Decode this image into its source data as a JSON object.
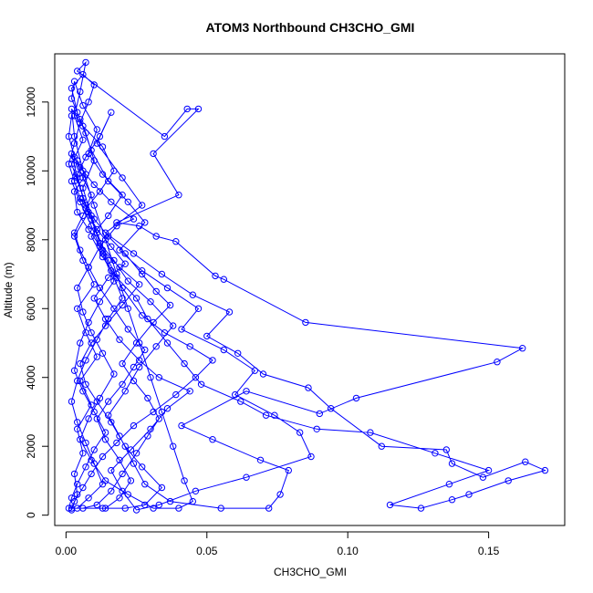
{
  "chart_data": {
    "type": "line",
    "title": "ATOM3 Northbound CH3CHO_GMI",
    "xlabel": "CH3CHO_GMI",
    "ylabel": "Altitude (m)",
    "xlim": [
      -0.004,
      0.177
    ],
    "ylim": [
      -300,
      13400
    ],
    "xticks": [
      0.0,
      0.05,
      0.1,
      0.15
    ],
    "xtick_labels": [
      "0.00",
      "0.05",
      "0.10",
      "0.15"
    ],
    "yticks": [
      0,
      2000,
      4000,
      6000,
      8000,
      10000,
      12000
    ],
    "ytick_labels": [
      "0",
      "2000",
      "4000",
      "6000",
      "8000",
      "10000",
      "12000"
    ],
    "grid": false,
    "marker": "open-circle",
    "series": [
      {
        "color": "#0000ff",
        "points": [
          [
            0.002,
            150
          ],
          [
            0.004,
            600
          ],
          [
            0.003,
            1200
          ],
          [
            0.006,
            1800
          ],
          [
            0.004,
            2500
          ],
          [
            0.009,
            3200
          ],
          [
            0.005,
            3900
          ],
          [
            0.011,
            4600
          ],
          [
            0.007,
            5300
          ],
          [
            0.004,
            6000
          ],
          [
            0.01,
            6700
          ],
          [
            0.006,
            7400
          ],
          [
            0.003,
            8100
          ],
          [
            0.008,
            8800
          ],
          [
            0.005,
            9500
          ],
          [
            0.002,
            10200
          ],
          [
            0.006,
            10900
          ],
          [
            0.003,
            11600
          ],
          [
            0.005,
            12300
          ],
          [
            0.007,
            13150
          ],
          [
            0.004,
            12900
          ],
          [
            0.035,
            11000
          ],
          [
            0.043,
            11800
          ],
          [
            0.047,
            11800
          ],
          [
            0.031,
            10500
          ],
          [
            0.04,
            9300
          ],
          [
            0.018,
            8500
          ],
          [
            0.026,
            8400
          ],
          [
            0.032,
            8100
          ],
          [
            0.039,
            7950
          ],
          [
            0.053,
            6950
          ],
          [
            0.056,
            6850
          ],
          [
            0.085,
            5600
          ],
          [
            0.162,
            4850
          ],
          [
            0.153,
            4450
          ],
          [
            0.103,
            3400
          ],
          [
            0.09,
            2950
          ],
          [
            0.064,
            3600
          ],
          [
            0.041,
            2600
          ],
          [
            0.052,
            2200
          ],
          [
            0.069,
            1600
          ],
          [
            0.079,
            1300
          ],
          [
            0.076,
            600
          ],
          [
            0.072,
            200
          ],
          [
            0.055,
            200
          ],
          [
            0.037,
            400
          ],
          [
            0.028,
            900
          ],
          [
            0.024,
            1500
          ],
          [
            0.019,
            2300
          ],
          [
            0.015,
            2900
          ],
          [
            0.021,
            3600
          ],
          [
            0.026,
            4300
          ],
          [
            0.032,
            4900
          ],
          [
            0.038,
            5500
          ],
          [
            0.03,
            6200
          ],
          [
            0.022,
            6800
          ],
          [
            0.017,
            7400
          ],
          [
            0.012,
            7900
          ],
          [
            0.009,
            8600
          ],
          [
            0.006,
            9200
          ],
          [
            0.004,
            9900
          ],
          [
            0.007,
            10400
          ],
          [
            0.012,
            11000
          ],
          [
            0.016,
            11700
          ],
          [
            0.011,
            10800
          ],
          [
            0.02,
            9800
          ],
          [
            0.027,
            9000
          ],
          [
            0.014,
            8200
          ],
          [
            0.024,
            7600
          ],
          [
            0.034,
            7000
          ],
          [
            0.045,
            6400
          ],
          [
            0.058,
            5900
          ],
          [
            0.05,
            5200
          ],
          [
            0.061,
            4700
          ],
          [
            0.07,
            4100
          ],
          [
            0.086,
            3700
          ],
          [
            0.094,
            3100
          ],
          [
            0.112,
            2000
          ],
          [
            0.135,
            1900
          ],
          [
            0.137,
            1500
          ],
          [
            0.148,
            1100
          ],
          [
            0.163,
            1550
          ],
          [
            0.17,
            1300
          ],
          [
            0.157,
            1000
          ],
          [
            0.143,
            600
          ],
          [
            0.137,
            450
          ],
          [
            0.126,
            200
          ],
          [
            0.115,
            300
          ],
          [
            0.136,
            900
          ],
          [
            0.15,
            1300
          ],
          [
            0.131,
            1800
          ],
          [
            0.108,
            2400
          ],
          [
            0.089,
            2500
          ],
          [
            0.071,
            2900
          ],
          [
            0.062,
            3300
          ],
          [
            0.048,
            3800
          ],
          [
            0.042,
            4400
          ],
          [
            0.036,
            5000
          ],
          [
            0.029,
            5700
          ],
          [
            0.025,
            6300
          ],
          [
            0.018,
            6900
          ],
          [
            0.013,
            7500
          ],
          [
            0.009,
            8100
          ],
          [
            0.015,
            8700
          ],
          [
            0.02,
            9300
          ],
          [
            0.013,
            9900
          ],
          [
            0.008,
            10500
          ],
          [
            0.011,
            11200
          ],
          [
            0.006,
            11900
          ],
          [
            0.003,
            12600
          ],
          [
            0.002,
            12100
          ],
          [
            0.005,
            11500
          ],
          [
            0.009,
            10600
          ],
          [
            0.015,
            9700
          ],
          [
            0.022,
            9100
          ],
          [
            0.028,
            8500
          ],
          [
            0.019,
            7700
          ],
          [
            0.027,
            7100
          ],
          [
            0.036,
            6600
          ],
          [
            0.047,
            6000
          ],
          [
            0.041,
            5400
          ],
          [
            0.056,
            4800
          ],
          [
            0.067,
            4200
          ],
          [
            0.06,
            3500
          ],
          [
            0.074,
            2900
          ],
          [
            0.083,
            2400
          ],
          [
            0.087,
            1700
          ],
          [
            0.064,
            1100
          ],
          [
            0.046,
            700
          ],
          [
            0.033,
            300
          ],
          [
            0.025,
            150
          ],
          [
            0.02,
            700
          ],
          [
            0.016,
            1300
          ],
          [
            0.023,
            1900
          ],
          [
            0.03,
            2500
          ],
          [
            0.036,
            3100
          ],
          [
            0.044,
            3600
          ],
          [
            0.033,
            4000
          ],
          [
            0.026,
            4500
          ],
          [
            0.019,
            5100
          ],
          [
            0.014,
            5700
          ],
          [
            0.01,
            6300
          ],
          [
            0.015,
            6900
          ],
          [
            0.021,
            7300
          ],
          [
            0.016,
            7800
          ],
          [
            0.011,
            8300
          ],
          [
            0.007,
            8900
          ],
          [
            0.012,
            9400
          ],
          [
            0.017,
            10000
          ],
          [
            0.013,
            10700
          ],
          [
            0.006,
            11300
          ],
          [
            0.002,
            11800
          ],
          [
            0.003,
            11000
          ],
          [
            0.006,
            10000
          ],
          [
            0.01,
            9000
          ],
          [
            0.014,
            8000
          ],
          [
            0.018,
            7000
          ],
          [
            0.022,
            6000
          ],
          [
            0.026,
            5000
          ],
          [
            0.03,
            4000
          ],
          [
            0.034,
            3000
          ],
          [
            0.038,
            2000
          ],
          [
            0.042,
            1000
          ],
          [
            0.045,
            400
          ],
          [
            0.04,
            200
          ],
          [
            0.031,
            200
          ],
          [
            0.022,
            600
          ],
          [
            0.014,
            1000
          ],
          [
            0.009,
            1600
          ],
          [
            0.005,
            2200
          ],
          [
            0.008,
            2800
          ],
          [
            0.012,
            3400
          ],
          [
            0.017,
            4100
          ],
          [
            0.013,
            4700
          ],
          [
            0.009,
            5300
          ],
          [
            0.006,
            5900
          ],
          [
            0.004,
            6600
          ],
          [
            0.008,
            7200
          ],
          [
            0.012,
            7800
          ],
          [
            0.018,
            8400
          ],
          [
            0.024,
            8600
          ],
          [
            0.016,
            9100
          ],
          [
            0.01,
            9600
          ],
          [
            0.005,
            10100
          ],
          [
            0.002,
            10500
          ],
          [
            0.004,
            9800
          ],
          [
            0.007,
            9000
          ],
          [
            0.011,
            8200
          ],
          [
            0.015,
            7400
          ],
          [
            0.02,
            6600
          ],
          [
            0.027,
            5800
          ],
          [
            0.035,
            5300
          ],
          [
            0.044,
            4900
          ],
          [
            0.052,
            4500
          ],
          [
            0.046,
            4000
          ],
          [
            0.039,
            3500
          ],
          [
            0.031,
            3000
          ],
          [
            0.024,
            2600
          ],
          [
            0.018,
            2100
          ],
          [
            0.013,
            1700
          ],
          [
            0.009,
            1200
          ],
          [
            0.006,
            800
          ],
          [
            0.003,
            400
          ],
          [
            0.002,
            200
          ],
          [
            0.013,
            200
          ],
          [
            0.021,
            200
          ],
          [
            0.028,
            300
          ],
          [
            0.034,
            800
          ],
          [
            0.027,
            1400
          ],
          [
            0.021,
            2000
          ],
          [
            0.016,
            2700
          ],
          [
            0.011,
            3300
          ],
          [
            0.007,
            3800
          ],
          [
            0.005,
            4400
          ],
          [
            0.009,
            5000
          ],
          [
            0.014,
            5500
          ],
          [
            0.02,
            6100
          ],
          [
            0.026,
            6700
          ],
          [
            0.019,
            7200
          ],
          [
            0.013,
            7700
          ],
          [
            0.008,
            8300
          ],
          [
            0.004,
            8800
          ],
          [
            0.003,
            9400
          ],
          [
            0.007,
            9900
          ],
          [
            0.004,
            10300
          ],
          [
            0.002,
            9700
          ],
          [
            0.005,
            9100
          ],
          [
            0.009,
            8400
          ],
          [
            0.013,
            7600
          ],
          [
            0.017,
            6800
          ],
          [
            0.012,
            6200
          ],
          [
            0.008,
            5600
          ],
          [
            0.005,
            5000
          ],
          [
            0.003,
            4200
          ],
          [
            0.006,
            3600
          ],
          [
            0.01,
            3000
          ],
          [
            0.014,
            2400
          ],
          [
            0.01,
            1900
          ],
          [
            0.007,
            1400
          ],
          [
            0.004,
            900
          ],
          [
            0.002,
            500
          ],
          [
            0.001,
            200
          ],
          [
            0.006,
            200
          ],
          [
            0.011,
            300
          ],
          [
            0.016,
            700
          ],
          [
            0.02,
            1200
          ],
          [
            0.025,
            1800
          ],
          [
            0.029,
            2300
          ],
          [
            0.033,
            2800
          ],
          [
            0.029,
            3400
          ],
          [
            0.024,
            3900
          ],
          [
            0.02,
            4400
          ],
          [
            0.025,
            5000
          ],
          [
            0.031,
            5600
          ],
          [
            0.037,
            6100
          ],
          [
            0.032,
            6500
          ],
          [
            0.027,
            7000
          ],
          [
            0.021,
            7600
          ],
          [
            0.015,
            8100
          ],
          [
            0.01,
            8600
          ],
          [
            0.005,
            9200
          ],
          [
            0.003,
            9700
          ],
          [
            0.001,
            10200
          ],
          [
            0.003,
            10800
          ],
          [
            0.005,
            11400
          ],
          [
            0.008,
            12000
          ],
          [
            0.01,
            12500
          ],
          [
            0.006,
            12800
          ],
          [
            0.002,
            12400
          ],
          [
            0.004,
            11700
          ],
          [
            0.007,
            11100
          ],
          [
            0.01,
            10300
          ],
          [
            0.006,
            9500
          ],
          [
            0.009,
            8700
          ],
          [
            0.012,
            7900
          ],
          [
            0.016,
            7100
          ],
          [
            0.02,
            6300
          ],
          [
            0.015,
            5700
          ],
          [
            0.011,
            5100
          ],
          [
            0.007,
            4500
          ],
          [
            0.004,
            3900
          ],
          [
            0.002,
            3300
          ],
          [
            0.004,
            2700
          ],
          [
            0.007,
            2100
          ],
          [
            0.01,
            1500
          ],
          [
            0.013,
            900
          ],
          [
            0.008,
            500
          ],
          [
            0.004,
            200
          ],
          [
            0.014,
            200
          ],
          [
            0.019,
            500
          ],
          [
            0.023,
            1000
          ],
          [
            0.019,
            1600
          ],
          [
            0.014,
            2200
          ],
          [
            0.011,
            2800
          ],
          [
            0.015,
            3300
          ],
          [
            0.02,
            3800
          ],
          [
            0.024,
            4300
          ],
          [
            0.028,
            4800
          ],
          [
            0.022,
            5400
          ],
          [
            0.017,
            6000
          ],
          [
            0.012,
            6600
          ],
          [
            0.008,
            7200
          ],
          [
            0.005,
            7700
          ],
          [
            0.003,
            8200
          ],
          [
            0.006,
            8700
          ],
          [
            0.009,
            9300
          ],
          [
            0.006,
            9800
          ],
          [
            0.003,
            10400
          ],
          [
            0.001,
            11000
          ],
          [
            0.002,
            11600
          ]
        ]
      }
    ]
  }
}
